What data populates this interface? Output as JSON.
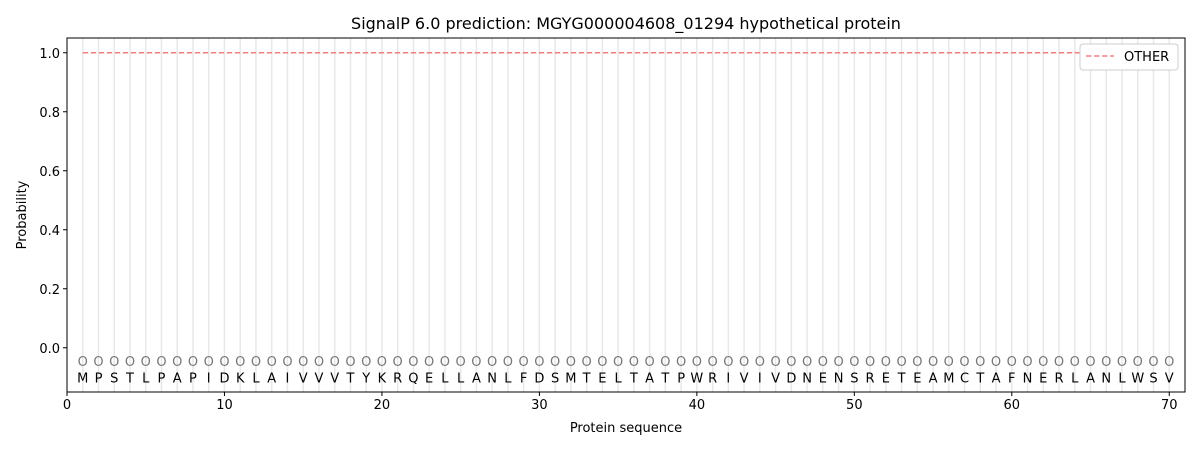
{
  "chart_data": {
    "type": "line",
    "title": "SignalP 6.0 prediction: MGYG000004608_01294 hypothetical protein",
    "xlabel": "Protein sequence",
    "ylabel": "Probability",
    "xlim": [
      0,
      71
    ],
    "ylim": [
      -0.15,
      1.05
    ],
    "xticks": [
      0,
      10,
      20,
      30,
      40,
      50,
      60,
      70
    ],
    "yticks": [
      0.0,
      0.2,
      0.4,
      0.6,
      0.8,
      1.0
    ],
    "ytick_labels": [
      "0.0",
      "0.2",
      "0.4",
      "0.6",
      "0.8",
      "1.0"
    ],
    "grid": "vertical lines at each residue",
    "legend_position": "top-right",
    "sequence": [
      "M",
      "P",
      "S",
      "T",
      "L",
      "P",
      "A",
      "P",
      "I",
      "D",
      "K",
      "L",
      "A",
      "I",
      "V",
      "V",
      "V",
      "T",
      "Y",
      "K",
      "R",
      "Q",
      "E",
      "L",
      "L",
      "A",
      "N",
      "L",
      "F",
      "D",
      "S",
      "M",
      "T",
      "E",
      "L",
      "T",
      "A",
      "T",
      "P",
      "W",
      "R",
      "I",
      "V",
      "I",
      "V",
      "D",
      "N",
      "E",
      "N",
      "S",
      "R",
      "E",
      "T",
      "E",
      "A",
      "M",
      "C",
      "T",
      "A",
      "F",
      "N",
      "E",
      "R",
      "L",
      "A",
      "N",
      "L",
      "W",
      "S",
      "V"
    ],
    "residue_labels": "O",
    "series": [
      {
        "name": "OTHER",
        "color": "#f08080",
        "style": "dashed",
        "x_range": [
          1,
          70
        ],
        "value": 1.0
      }
    ]
  }
}
